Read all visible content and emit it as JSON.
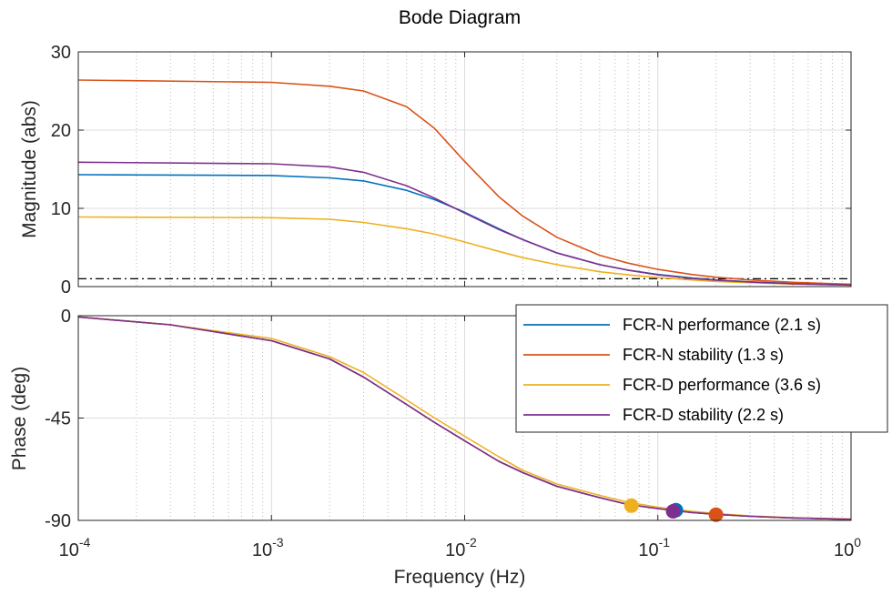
{
  "chart_data": {
    "type": "line",
    "title": "Bode Diagram",
    "xlabel": "Frequency  (Hz)",
    "x_scale": "log",
    "xlim": [
      0.0001,
      1
    ],
    "x_ticks": [
      {
        "base": "10",
        "exp": "-4"
      },
      {
        "base": "10",
        "exp": "-3"
      },
      {
        "base": "10",
        "exp": "-2"
      },
      {
        "base": "10",
        "exp": "-1"
      },
      {
        "base": "10",
        "exp": "0"
      }
    ],
    "grid": true,
    "legend_location": "right, spanning the boundary between the two panels",
    "colors": {
      "fcrn_perf": "#0072BD",
      "fcrn_stab": "#D95319",
      "fcrd_perf": "#EDB120",
      "fcrd_stab": "#7E2F8E"
    },
    "magnitude": {
      "ylabel": "Magnitude (abs)",
      "ylim": [
        0,
        30
      ],
      "yticks": [
        "0",
        "10",
        "20",
        "30"
      ],
      "reference_line": {
        "y": 1,
        "style": "dash-dot",
        "color": "#000000"
      },
      "series": [
        {
          "key": "fcrn_perf",
          "x": [
            0.0001,
            0.001,
            0.002,
            0.003,
            0.005,
            0.007,
            0.01,
            0.015,
            0.02,
            0.03,
            0.05,
            0.07,
            0.1,
            0.15,
            0.2,
            0.3,
            0.5,
            1
          ],
          "y": [
            14.3,
            14.2,
            13.9,
            13.5,
            12.3,
            11.1,
            9.5,
            7.4,
            6.0,
            4.3,
            2.8,
            2.1,
            1.55,
            1.1,
            0.85,
            0.6,
            0.38,
            0.2
          ]
        },
        {
          "key": "fcrn_stab",
          "x": [
            0.0001,
            0.001,
            0.002,
            0.003,
            0.005,
            0.007,
            0.01,
            0.015,
            0.02,
            0.03,
            0.05,
            0.07,
            0.1,
            0.15,
            0.2,
            0.3,
            0.5,
            1
          ],
          "y": [
            26.4,
            26.1,
            25.6,
            25.0,
            23.0,
            20.2,
            16.0,
            11.5,
            9.0,
            6.3,
            4.0,
            3.0,
            2.2,
            1.55,
            1.2,
            0.85,
            0.55,
            0.3
          ]
        },
        {
          "key": "fcrd_perf",
          "x": [
            0.0001,
            0.001,
            0.002,
            0.003,
            0.005,
            0.007,
            0.01,
            0.015,
            0.02,
            0.03,
            0.05,
            0.07,
            0.1,
            0.15,
            0.2,
            0.3,
            0.5,
            1
          ],
          "y": [
            8.9,
            8.8,
            8.6,
            8.2,
            7.4,
            6.7,
            5.7,
            4.5,
            3.7,
            2.8,
            1.9,
            1.5,
            1.15,
            0.85,
            0.65,
            0.5,
            0.32,
            0.18
          ]
        },
        {
          "key": "fcrd_stab",
          "x": [
            0.0001,
            0.001,
            0.002,
            0.003,
            0.005,
            0.007,
            0.01,
            0.015,
            0.02,
            0.03,
            0.05,
            0.07,
            0.1,
            0.15,
            0.2,
            0.3,
            0.5,
            1
          ],
          "y": [
            15.9,
            15.7,
            15.3,
            14.6,
            12.9,
            11.3,
            9.4,
            7.3,
            6.0,
            4.3,
            2.8,
            2.1,
            1.5,
            1.05,
            0.82,
            0.58,
            0.36,
            0.2
          ]
        }
      ]
    },
    "phase": {
      "ylabel": "Phase (deg)",
      "ylim": [
        -90,
        0
      ],
      "yticks": [
        "0",
        "-45",
        "-90"
      ],
      "series": [
        {
          "key": "fcrn_perf",
          "x": [
            0.0001,
            0.0003,
            0.001,
            0.002,
            0.003,
            0.005,
            0.007,
            0.01,
            0.015,
            0.02,
            0.03,
            0.05,
            0.07,
            0.1,
            0.15,
            0.2,
            0.3,
            0.5,
            1
          ],
          "y": [
            -0.5,
            -4,
            -11,
            -19,
            -27,
            -39,
            -47,
            -55,
            -64,
            -69,
            -75,
            -80,
            -83,
            -84.8,
            -86.5,
            -87.3,
            -88.2,
            -88.9,
            -89.5
          ]
        },
        {
          "key": "fcrn_stab",
          "x": [
            0.0001,
            0.0003,
            0.001,
            0.002,
            0.003,
            0.005,
            0.007,
            0.01,
            0.015,
            0.02,
            0.03,
            0.05,
            0.07,
            0.1,
            0.15,
            0.2,
            0.3,
            0.5,
            1
          ],
          "y": [
            -0.5,
            -4,
            -11,
            -19,
            -27,
            -39,
            -47,
            -55,
            -64,
            -69,
            -75,
            -80,
            -83,
            -84.8,
            -86.5,
            -87.3,
            -88.2,
            -88.9,
            -89.5
          ]
        },
        {
          "key": "fcrd_perf",
          "x": [
            0.0001,
            0.0003,
            0.001,
            0.002,
            0.003,
            0.005,
            0.007,
            0.01,
            0.015,
            0.02,
            0.03,
            0.05,
            0.07,
            0.1,
            0.15,
            0.2,
            0.3,
            0.5,
            1
          ],
          "y": [
            -0.5,
            -4,
            -10,
            -18,
            -25,
            -37,
            -45,
            -53,
            -62,
            -68,
            -74,
            -79,
            -82,
            -84.2,
            -86,
            -87,
            -88,
            -88.8,
            -89.4
          ]
        },
        {
          "key": "fcrd_stab",
          "x": [
            0.0001,
            0.0003,
            0.001,
            0.002,
            0.003,
            0.005,
            0.007,
            0.01,
            0.015,
            0.02,
            0.03,
            0.05,
            0.07,
            0.1,
            0.15,
            0.2,
            0.3,
            0.5,
            1
          ],
          "y": [
            -0.6,
            -4,
            -11,
            -19,
            -27,
            -39,
            -47,
            -55,
            -64,
            -69,
            -75,
            -80,
            -83,
            -84.8,
            -86.5,
            -87.3,
            -88.2,
            -88.9,
            -89.5
          ]
        }
      ],
      "markers": [
        {
          "key": "fcrd_perf",
          "x": 0.073,
          "y": -83.5
        },
        {
          "key": "fcrn_perf",
          "x": 0.124,
          "y": -85.5
        },
        {
          "key": "fcrd_stab",
          "x": 0.12,
          "y": -86
        },
        {
          "key": "fcrn_stab",
          "x": 0.2,
          "y": -87.5
        }
      ]
    },
    "legend": [
      {
        "key": "fcrn_perf",
        "label": "FCR-N performance (2.1 s)"
      },
      {
        "key": "fcrn_stab",
        "label": "FCR-N stability (1.3 s)"
      },
      {
        "key": "fcrd_perf",
        "label": "FCR-D performance (3.6 s)"
      },
      {
        "key": "fcrd_stab",
        "label": "FCR-D stability (2.2 s)"
      }
    ]
  }
}
